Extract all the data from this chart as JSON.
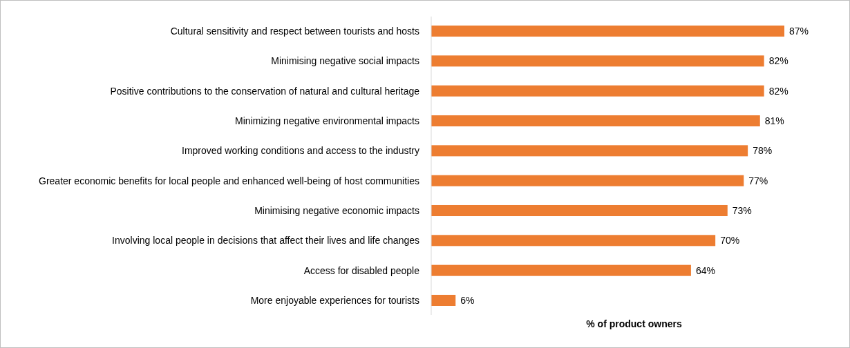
{
  "chart_data": {
    "type": "bar",
    "orientation": "horizontal",
    "xlabel": "% of product owners",
    "categories": [
      "Cultural sensitivity and respect between tourists and hosts",
      "Minimising negative social impacts",
      "Positive contributions to the conservation of natural and cultural heritage",
      "Minimizing negative environmental impacts",
      "Improved working conditions and access to the industry",
      "Greater economic benefits for local people and enhanced well-being of host communities",
      "Minimising negative economic impacts",
      "Involving local people in decisions that affect their lives and life changes",
      "Access for disabled people",
      "More enjoyable experiences for tourists"
    ],
    "values": [
      87,
      82,
      82,
      81,
      78,
      77,
      73,
      70,
      64,
      6
    ],
    "value_labels": [
      "87%",
      "82%",
      "82%",
      "81%",
      "78%",
      "77%",
      "73%",
      "70%",
      "64%",
      "6%"
    ],
    "color": "#ed7d31",
    "tick_labels": "y"
  }
}
